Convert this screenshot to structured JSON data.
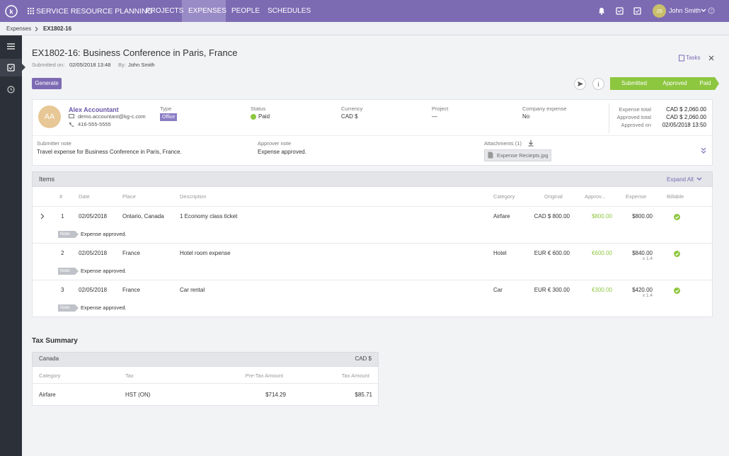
{
  "nav": {
    "brand": "SERVICE RESOURCE PLANNING",
    "tabs": [
      "PROJECTS",
      "EXPENSES",
      "PEOPLE",
      "SCHEDULES"
    ],
    "user_initials": "JS",
    "user": "John Smith"
  },
  "breadcrumb": [
    "Expenses",
    "EX1802-16"
  ],
  "header": {
    "title": "EX1802-16: Business Conference in Paris, France",
    "submitted_label": "Submitted on:",
    "submitted_on": "02/05/2018 13:48",
    "by_label": "By:",
    "by": "John Smith",
    "tasks": "Tasks",
    "generate": "Generate",
    "steps": [
      "Submitted",
      "Approved",
      "Paid"
    ]
  },
  "summary": {
    "initials": "AA",
    "name": "Alex Accountant",
    "email": "demo.accountant@kg-c.com",
    "phone": "416-555-5555",
    "fields": [
      {
        "label": "Type",
        "value": "Office"
      },
      {
        "label": "Status",
        "value": "Paid"
      },
      {
        "label": "Currency",
        "value": "CAD $"
      },
      {
        "label": "Project",
        "value": "—"
      },
      {
        "label": "Company expense",
        "value": "No"
      }
    ],
    "totals": [
      {
        "label": "Expense total",
        "value": "CAD $ 2,060.00"
      },
      {
        "label": "Approved total",
        "value": "CAD $ 2,060.00"
      },
      {
        "label": "Approved on",
        "value": "02/05/2018 13:50"
      }
    ],
    "submitter_note_label": "Submitter note",
    "submitter_note": "Travel expense for Business Conference in Paris, France.",
    "approver_note_label": "Approver note",
    "approver_note": "Expense approved.",
    "attachments_label": "Attachments (1)",
    "attachment": "Expense Reciepts.jpg"
  },
  "items": {
    "title": "Items",
    "expand": "Expand All",
    "columns": [
      "#",
      "Date",
      "Place",
      "Description",
      "Category",
      "Original",
      "Approv...",
      "Expense",
      "Billable"
    ],
    "rows": [
      {
        "num": "1",
        "date": "02/05/2018",
        "place": "Ontario, Canada",
        "description": "1 Economy class ticket",
        "category": "Airfare",
        "original": "CAD $ 800.00",
        "approved": "$800.00",
        "expense": "$800.00",
        "billable": true,
        "note_tag": "Note",
        "note": "Expense approved."
      },
      {
        "num": "2",
        "date": "02/05/2018",
        "place": "France",
        "description": "Hotel room expense",
        "category": "Hotel",
        "original": "EUR € 600.00",
        "approved": "€600.00",
        "expense": "$840.00",
        "rate": "x 1.4",
        "billable": true,
        "note_tag": "Note",
        "note": "Expense approved."
      },
      {
        "num": "3",
        "date": "02/05/2018",
        "place": "France",
        "description": "Car rental",
        "category": "Car",
        "original": "EUR € 300.00",
        "approved": "€300.00",
        "expense": "$420.00",
        "rate": "x 1.4",
        "billable": true,
        "note_tag": "Note",
        "note": "Expense approved."
      }
    ]
  },
  "tax": {
    "title": "Tax Summary",
    "region": "Canada",
    "currency": "CAD $",
    "columns": [
      "Category",
      "Tax",
      "Pre-Tax Amount",
      "Tax Amount"
    ],
    "rows": [
      [
        "Airfare",
        "HST (ON)",
        "$714.29",
        "$85.71"
      ]
    ]
  }
}
